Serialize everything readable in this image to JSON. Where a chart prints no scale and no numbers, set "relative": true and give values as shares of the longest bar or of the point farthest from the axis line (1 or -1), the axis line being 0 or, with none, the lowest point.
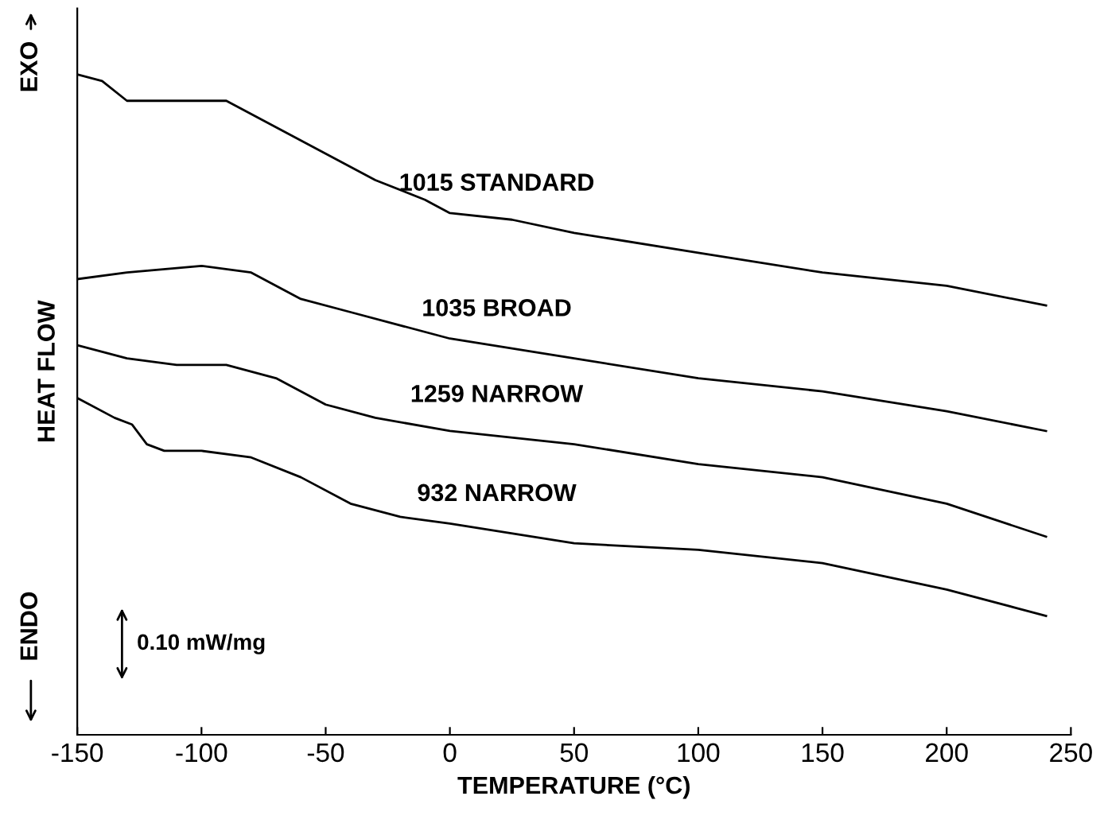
{
  "chart_data": {
    "type": "line",
    "xlabel": "TEMPERATURE (°C)",
    "ylabel": "HEAT FLOW",
    "relative": true,
    "xlim": [
      -150,
      250
    ],
    "xticks": [
      -150,
      -100,
      -50,
      0,
      50,
      100,
      150,
      200,
      250
    ],
    "grid": false,
    "marker": "none",
    "line_style": "solid",
    "annotations": [
      "EXO",
      "ENDO",
      "0.10 mW/mg"
    ],
    "series": [
      {
        "name": "1015 STANDARD",
        "color": "#000000",
        "x": [
          -150,
          -140,
          -130,
          -120,
          -100,
          -90,
          -70,
          -50,
          -30,
          -10,
          0,
          25,
          50,
          100,
          150,
          200,
          240
        ],
        "values": [
          1.0,
          0.99,
          0.96,
          0.96,
          0.96,
          0.96,
          0.92,
          0.88,
          0.84,
          0.81,
          0.79,
          0.78,
          0.76,
          0.73,
          0.7,
          0.68,
          0.65
        ]
      },
      {
        "name": "1035 BROAD",
        "color": "#000000",
        "x": [
          -150,
          -130,
          -100,
          -80,
          -60,
          -40,
          0,
          50,
          100,
          150,
          200,
          240
        ],
        "values": [
          0.69,
          0.7,
          0.71,
          0.7,
          0.66,
          0.64,
          0.6,
          0.57,
          0.54,
          0.52,
          0.49,
          0.46
        ]
      },
      {
        "name": "1259 NARROW",
        "color": "#000000",
        "x": [
          -150,
          -130,
          -110,
          -90,
          -70,
          -50,
          -30,
          0,
          50,
          100,
          150,
          200,
          240
        ],
        "values": [
          0.59,
          0.57,
          0.56,
          0.56,
          0.54,
          0.5,
          0.48,
          0.46,
          0.44,
          0.41,
          0.39,
          0.35,
          0.3
        ]
      },
      {
        "name": "932 NARROW",
        "color": "#000000",
        "x": [
          -150,
          -135,
          -128,
          -122,
          -115,
          -100,
          -80,
          -60,
          -40,
          -20,
          0,
          50,
          100,
          150,
          200,
          240
        ],
        "values": [
          0.51,
          0.48,
          0.47,
          0.44,
          0.43,
          0.43,
          0.42,
          0.39,
          0.35,
          0.33,
          0.32,
          0.29,
          0.28,
          0.26,
          0.22,
          0.18
        ]
      }
    ]
  }
}
